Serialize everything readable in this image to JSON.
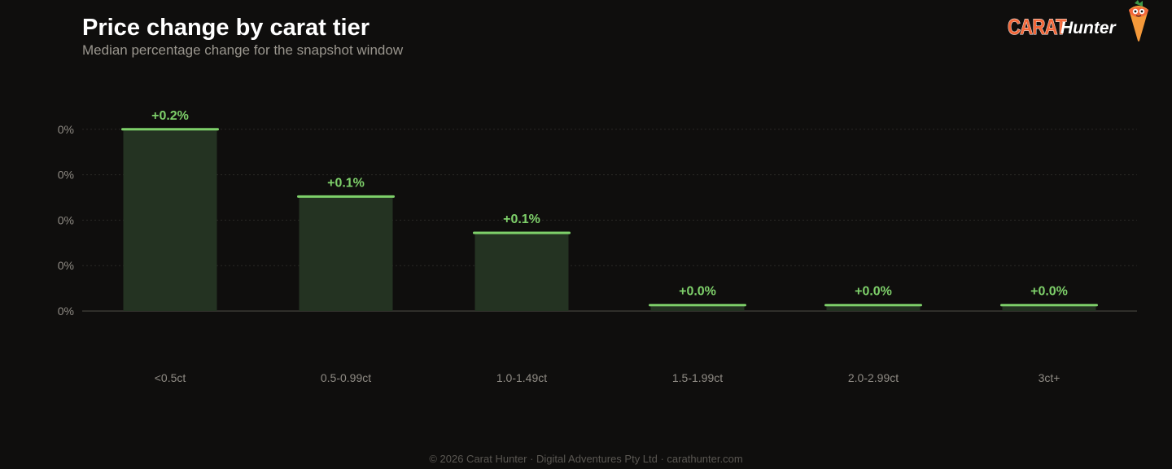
{
  "header": {
    "title": "Price change by carat tier",
    "subtitle": "Median percentage change for the snapshot window"
  },
  "logo": {
    "brand_word": "CARAT",
    "brand_suffix": "Hunter",
    "mascot_icon": "carrot-mascot-icon"
  },
  "colors": {
    "background": "#0f0e0d",
    "bar_fill": "#243322",
    "bar_top": "#7ed06a",
    "value_label": "#7ed06a",
    "grid": "#2a2926",
    "axis": "#3a3935",
    "brand_orange": "#f2683a"
  },
  "chart_data": {
    "type": "bar",
    "title": "Price change by carat tier",
    "subtitle": "Median percentage change for the snapshot window",
    "xlabel": "",
    "ylabel": "",
    "categories": [
      "<0.5ct",
      "0.5-0.99ct",
      "1.0-1.49ct",
      "1.5-1.99ct",
      "2.0-2.99ct",
      "3ct+"
    ],
    "values": [
      0.2,
      0.126,
      0.086,
      0.0065,
      0.0065,
      0.0065
    ],
    "value_labels": [
      "+0.2%",
      "+0.1%",
      "+0.1%",
      "+0.0%",
      "+0.0%",
      "+0.0%"
    ],
    "ylim": [
      0,
      0.25
    ],
    "y_ticks": [
      0,
      0.05,
      0.1,
      0.15,
      0.2
    ],
    "y_tick_labels": [
      "0%",
      "0%",
      "0%",
      "0%",
      "0%"
    ],
    "grid": true,
    "legend": "none"
  },
  "footer": {
    "text": "© 2026 Carat Hunter · Digital Adventures Pty Ltd · carathunter.com"
  }
}
